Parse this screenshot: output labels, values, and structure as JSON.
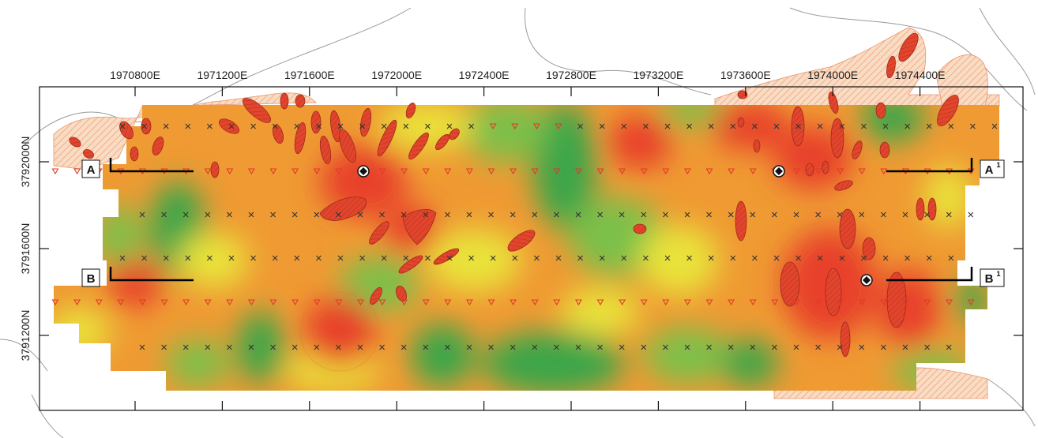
{
  "map": {
    "eastings": [
      "1970800E",
      "1971200E",
      "1971600E",
      "1972000E",
      "1972400E",
      "1972800E",
      "1973200E",
      "1973600E",
      "1974000E",
      "1974400E"
    ],
    "northings": [
      "3792000N",
      "3791600N",
      "3791200N"
    ],
    "sections": [
      {
        "label": "A",
        "sup": ""
      },
      {
        "label": "A",
        "sup": "1"
      },
      {
        "label": "B",
        "sup": ""
      },
      {
        "label": "B",
        "sup": "1"
      }
    ],
    "colors": {
      "high": "#e8412a",
      "mid_high": "#f08a2c",
      "mid": "#f4b43a",
      "mid_low": "#e9e33a",
      "low": "#7cc04a",
      "lowest": "#3aa64a",
      "anomaly": "#dd4b32",
      "hatch": "#f6c9a8",
      "station_x": "#333333",
      "station_tri": "#e23a2a",
      "frame": "#111111",
      "contour": "#9a9a9a"
    },
    "legend_semantics": {
      "x_marker": "station-x-icon",
      "tri_marker": "station-triangle-icon",
      "drillhole": "drillhole-icon"
    }
  }
}
